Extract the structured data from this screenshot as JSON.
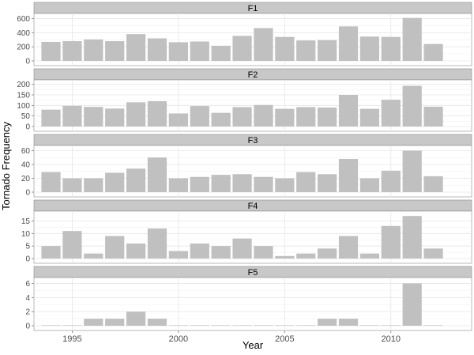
{
  "chart_data": {
    "type": "bar",
    "layout": "faceted-vertical",
    "xlabel": "Year",
    "ylabel": "Tornado Frequency",
    "x": [
      1994,
      1995,
      1996,
      1997,
      1998,
      1999,
      2000,
      2001,
      2002,
      2003,
      2004,
      2005,
      2006,
      2007,
      2008,
      2009,
      2010,
      2011,
      2012
    ],
    "xlim": [
      1993.2,
      2013.8
    ],
    "x_ticks": [
      1995,
      2000,
      2005,
      2010
    ],
    "grid": true,
    "bar_color": "#c0c0c0",
    "strip_color": "#c8c8c8",
    "panel_bg": "#ffffff",
    "grid_color": "#e6e6e6",
    "facets": [
      {
        "name": "F1",
        "ylim": [
          0,
          640
        ],
        "y_ticks": [
          0,
          200,
          400,
          600
        ],
        "values": [
          270,
          280,
          305,
          280,
          380,
          320,
          265,
          275,
          215,
          355,
          465,
          340,
          290,
          295,
          490,
          345,
          340,
          610,
          240
        ]
      },
      {
        "name": "F2",
        "ylim": [
          0,
          210
        ],
        "y_ticks": [
          0,
          50,
          100,
          150,
          200
        ],
        "values": [
          80,
          98,
          93,
          85,
          115,
          120,
          62,
          97,
          65,
          92,
          102,
          84,
          92,
          90,
          150,
          84,
          127,
          193,
          94
        ]
      },
      {
        "name": "F3",
        "ylim": [
          0,
          64
        ],
        "y_ticks": [
          0,
          20,
          40,
          60
        ],
        "values": [
          29,
          20,
          20,
          28,
          34,
          50,
          20,
          22,
          25,
          26,
          22,
          20,
          29,
          26,
          48,
          20,
          31,
          60,
          23
        ]
      },
      {
        "name": "F4",
        "ylim": [
          0,
          18
        ],
        "y_ticks": [
          0,
          5,
          10,
          15
        ],
        "values": [
          5,
          11,
          2,
          9,
          6,
          12,
          3,
          6,
          5,
          8,
          5,
          1,
          2,
          4,
          9,
          2,
          13,
          17,
          4
        ]
      },
      {
        "name": "F5",
        "ylim": [
          0,
          6.5
        ],
        "y_ticks": [
          0,
          2,
          4,
          6
        ],
        "values": [
          0,
          0,
          1,
          1,
          2,
          1,
          0,
          0,
          0,
          0,
          0,
          0,
          0,
          1,
          1,
          0,
          0,
          6,
          0
        ]
      }
    ]
  }
}
